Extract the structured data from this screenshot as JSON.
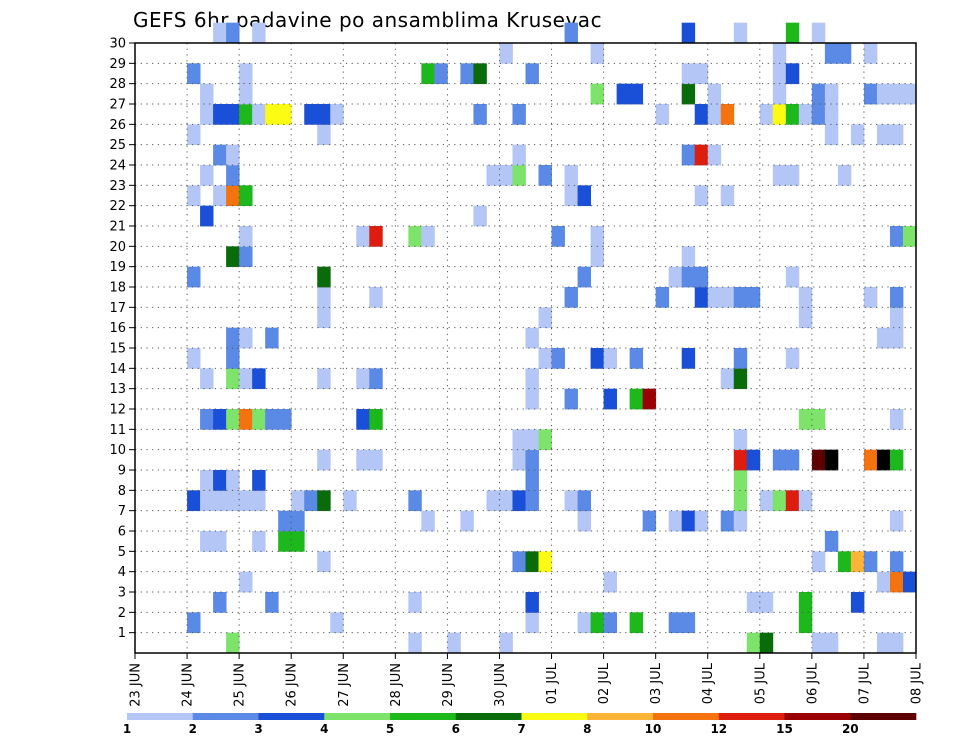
{
  "chart_data": {
    "type": "heatmap",
    "title": "GEFS 6hr padavine po ansamblima Krusevac",
    "xlabel": "",
    "ylabel": "",
    "x_tick_labels": [
      "23 JUN",
      "24 JUN",
      "25 JUN",
      "26 JUN",
      "27 JUN",
      "28 JUN",
      "29 JUN",
      "30 JUN",
      "01 JUL",
      "02 JUL",
      "03 JUL",
      "04 JUL",
      "05 JUL",
      "06 JUL",
      "07 JUL",
      "08 JUL"
    ],
    "x_range_6h_steps": [
      0,
      60
    ],
    "y_tick_labels": [
      "1",
      "2",
      "3",
      "4",
      "5",
      "6",
      "7",
      "8",
      "9",
      "10",
      "11",
      "12",
      "13",
      "14",
      "15",
      "16",
      "17",
      "18",
      "19",
      "20",
      "21",
      "22",
      "23",
      "24",
      "25",
      "26",
      "27",
      "28",
      "29",
      "30"
    ],
    "y_range": [
      0,
      30
    ],
    "grid": true,
    "colorbar": {
      "placement": "bottom",
      "levels": [
        "1",
        "2",
        "3",
        "4",
        "5",
        "6",
        "7",
        "8",
        "10",
        "12",
        "15",
        "20"
      ],
      "colors": [
        "#b4c6f6",
        "#5a8ae6",
        "#1a4fd8",
        "#7ee36a",
        "#1cb81c",
        "#0a6b0a",
        "#fbfb14",
        "#fbb437",
        "#f5730f",
        "#dd1d0d",
        "#9a0000",
        "#5e0000"
      ]
    },
    "cells_x_y_level": [
      [
        7,
        0,
        4
      ],
      [
        21,
        0,
        1
      ],
      [
        24,
        0,
        1
      ],
      [
        28,
        0,
        1
      ],
      [
        47,
        0,
        4
      ],
      [
        48,
        0,
        6
      ],
      [
        52,
        0,
        1
      ],
      [
        53,
        0,
        1
      ],
      [
        57,
        0,
        1
      ],
      [
        58,
        0,
        1
      ],
      [
        4,
        1,
        2
      ],
      [
        15,
        1,
        1
      ],
      [
        30,
        1,
        1
      ],
      [
        34,
        1,
        1
      ],
      [
        35,
        1,
        5
      ],
      [
        36,
        1,
        2
      ],
      [
        38,
        1,
        5
      ],
      [
        41,
        1,
        2
      ],
      [
        42,
        1,
        2
      ],
      [
        51,
        1,
        5
      ],
      [
        6,
        2,
        2
      ],
      [
        10,
        2,
        2
      ],
      [
        21,
        2,
        1
      ],
      [
        30,
        2,
        3
      ],
      [
        47,
        2,
        1
      ],
      [
        48,
        2,
        1
      ],
      [
        51,
        2,
        5
      ],
      [
        55,
        2,
        3
      ],
      [
        8,
        3,
        1
      ],
      [
        36,
        3,
        1
      ],
      [
        57,
        3,
        1
      ],
      [
        58,
        3,
        9
      ],
      [
        59,
        3,
        3
      ],
      [
        14,
        4,
        1
      ],
      [
        29,
        4,
        2
      ],
      [
        30,
        4,
        6
      ],
      [
        31,
        4,
        7
      ],
      [
        52,
        4,
        1
      ],
      [
        54,
        4,
        5
      ],
      [
        55,
        4,
        8
      ],
      [
        56,
        4,
        2
      ],
      [
        58,
        4,
        2
      ],
      [
        5,
        5,
        1
      ],
      [
        6,
        5,
        1
      ],
      [
        9,
        5,
        1
      ],
      [
        11,
        5,
        5
      ],
      [
        12,
        5,
        5
      ],
      [
        53,
        5,
        2
      ],
      [
        11,
        6,
        2
      ],
      [
        12,
        6,
        2
      ],
      [
        22,
        6,
        1
      ],
      [
        25,
        6,
        1
      ],
      [
        34,
        6,
        1
      ],
      [
        39,
        6,
        2
      ],
      [
        41,
        6,
        1
      ],
      [
        42,
        6,
        3
      ],
      [
        43,
        6,
        1
      ],
      [
        45,
        6,
        2
      ],
      [
        46,
        6,
        1
      ],
      [
        58,
        6,
        1
      ],
      [
        4,
        7,
        3
      ],
      [
        5,
        7,
        1
      ],
      [
        6,
        7,
        1
      ],
      [
        7,
        7,
        1
      ],
      [
        8,
        7,
        1
      ],
      [
        9,
        7,
        1
      ],
      [
        12,
        7,
        1
      ],
      [
        13,
        7,
        2
      ],
      [
        14,
        7,
        6
      ],
      [
        16,
        7,
        1
      ],
      [
        21,
        7,
        2
      ],
      [
        27,
        7,
        1
      ],
      [
        28,
        7,
        1
      ],
      [
        29,
        7,
        3
      ],
      [
        30,
        7,
        2
      ],
      [
        33,
        7,
        1
      ],
      [
        34,
        7,
        2
      ],
      [
        46,
        7,
        4
      ],
      [
        48,
        7,
        1
      ],
      [
        49,
        7,
        4
      ],
      [
        50,
        7,
        10
      ],
      [
        51,
        7,
        1
      ],
      [
        5,
        8,
        1
      ],
      [
        6,
        8,
        3
      ],
      [
        7,
        8,
        1
      ],
      [
        9,
        8,
        3
      ],
      [
        30,
        8,
        2
      ],
      [
        46,
        8,
        4
      ],
      [
        14,
        9,
        1
      ],
      [
        17,
        9,
        1
      ],
      [
        18,
        9,
        1
      ],
      [
        29,
        9,
        1
      ],
      [
        30,
        9,
        2
      ],
      [
        46,
        9,
        10
      ],
      [
        47,
        9,
        3
      ],
      [
        49,
        9,
        2
      ],
      [
        50,
        9,
        2
      ],
      [
        52,
        9,
        12
      ],
      [
        53,
        9,
        13
      ],
      [
        56,
        9,
        9
      ],
      [
        57,
        9,
        13
      ],
      [
        58,
        9,
        5
      ],
      [
        29,
        10,
        1
      ],
      [
        30,
        10,
        1
      ],
      [
        31,
        10,
        4
      ],
      [
        46,
        10,
        1
      ],
      [
        5,
        11,
        2
      ],
      [
        6,
        11,
        3
      ],
      [
        7,
        11,
        4
      ],
      [
        8,
        11,
        9
      ],
      [
        9,
        11,
        4
      ],
      [
        10,
        11,
        2
      ],
      [
        11,
        11,
        2
      ],
      [
        17,
        11,
        3
      ],
      [
        18,
        11,
        5
      ],
      [
        51,
        11,
        4
      ],
      [
        52,
        11,
        4
      ],
      [
        58,
        11,
        1
      ],
      [
        30,
        12,
        1
      ],
      [
        33,
        12,
        2
      ],
      [
        36,
        12,
        3
      ],
      [
        38,
        12,
        5
      ],
      [
        39,
        12,
        11
      ],
      [
        5,
        13,
        1
      ],
      [
        7,
        13,
        4
      ],
      [
        8,
        13,
        1
      ],
      [
        9,
        13,
        3
      ],
      [
        14,
        13,
        1
      ],
      [
        17,
        13,
        1
      ],
      [
        18,
        13,
        2
      ],
      [
        30,
        13,
        1
      ],
      [
        45,
        13,
        1
      ],
      [
        46,
        13,
        6
      ],
      [
        4,
        14,
        1
      ],
      [
        7,
        14,
        2
      ],
      [
        31,
        14,
        1
      ],
      [
        32,
        14,
        2
      ],
      [
        35,
        14,
        3
      ],
      [
        36,
        14,
        1
      ],
      [
        38,
        14,
        2
      ],
      [
        42,
        14,
        3
      ],
      [
        46,
        14,
        2
      ],
      [
        50,
        14,
        1
      ],
      [
        7,
        15,
        2
      ],
      [
        8,
        15,
        1
      ],
      [
        10,
        15,
        2
      ],
      [
        30,
        15,
        1
      ],
      [
        57,
        15,
        1
      ],
      [
        58,
        15,
        1
      ],
      [
        14,
        16,
        1
      ],
      [
        31,
        16,
        1
      ],
      [
        51,
        16,
        1
      ],
      [
        58,
        16,
        1
      ],
      [
        14,
        17,
        1
      ],
      [
        18,
        17,
        1
      ],
      [
        33,
        17,
        2
      ],
      [
        40,
        17,
        2
      ],
      [
        43,
        17,
        3
      ],
      [
        44,
        17,
        1
      ],
      [
        45,
        17,
        1
      ],
      [
        46,
        17,
        2
      ],
      [
        47,
        17,
        2
      ],
      [
        51,
        17,
        1
      ],
      [
        56,
        17,
        1
      ],
      [
        58,
        17,
        2
      ],
      [
        4,
        18,
        2
      ],
      [
        14,
        18,
        6
      ],
      [
        34,
        18,
        2
      ],
      [
        41,
        18,
        1
      ],
      [
        42,
        18,
        2
      ],
      [
        43,
        18,
        2
      ],
      [
        50,
        18,
        1
      ],
      [
        7,
        19,
        6
      ],
      [
        8,
        19,
        2
      ],
      [
        35,
        19,
        1
      ],
      [
        42,
        19,
        1
      ],
      [
        8,
        20,
        1
      ],
      [
        17,
        20,
        1
      ],
      [
        18,
        20,
        10
      ],
      [
        21,
        20,
        4
      ],
      [
        22,
        20,
        1
      ],
      [
        32,
        20,
        2
      ],
      [
        35,
        20,
        1
      ],
      [
        58,
        20,
        2
      ],
      [
        59,
        20,
        4
      ],
      [
        5,
        21,
        3
      ],
      [
        26,
        21,
        1
      ],
      [
        4,
        22,
        1
      ],
      [
        6,
        22,
        1
      ],
      [
        7,
        22,
        9
      ],
      [
        8,
        22,
        5
      ],
      [
        33,
        22,
        1
      ],
      [
        34,
        22,
        3
      ],
      [
        43,
        22,
        1
      ],
      [
        45,
        22,
        1
      ],
      [
        5,
        23,
        1
      ],
      [
        7,
        23,
        2
      ],
      [
        27,
        23,
        1
      ],
      [
        28,
        23,
        1
      ],
      [
        29,
        23,
        4
      ],
      [
        31,
        23,
        2
      ],
      [
        33,
        23,
        1
      ],
      [
        49,
        23,
        1
      ],
      [
        50,
        23,
        1
      ],
      [
        54,
        23,
        1
      ],
      [
        6,
        24,
        2
      ],
      [
        7,
        24,
        1
      ],
      [
        29,
        24,
        1
      ],
      [
        42,
        24,
        2
      ],
      [
        43,
        24,
        10
      ],
      [
        44,
        24,
        1
      ],
      [
        4,
        25,
        1
      ],
      [
        14,
        25,
        1
      ],
      [
        53,
        25,
        1
      ],
      [
        55,
        25,
        1
      ],
      [
        57,
        25,
        1
      ],
      [
        58,
        25,
        1
      ],
      [
        5,
        26,
        1
      ],
      [
        6,
        26,
        3
      ],
      [
        7,
        26,
        3
      ],
      [
        8,
        26,
        5
      ],
      [
        9,
        26,
        1
      ],
      [
        10,
        26,
        7
      ],
      [
        11,
        26,
        7
      ],
      [
        13,
        26,
        3
      ],
      [
        14,
        26,
        3
      ],
      [
        15,
        26,
        1
      ],
      [
        26,
        26,
        2
      ],
      [
        29,
        26,
        2
      ],
      [
        40,
        26,
        1
      ],
      [
        43,
        26,
        3
      ],
      [
        44,
        26,
        1
      ],
      [
        45,
        26,
        9
      ],
      [
        48,
        26,
        1
      ],
      [
        49,
        26,
        7
      ],
      [
        50,
        26,
        5
      ],
      [
        51,
        26,
        1
      ],
      [
        52,
        26,
        2
      ],
      [
        53,
        26,
        1
      ],
      [
        5,
        27,
        1
      ],
      [
        8,
        27,
        1
      ],
      [
        35,
        27,
        4
      ],
      [
        37,
        27,
        3
      ],
      [
        38,
        27,
        3
      ],
      [
        42,
        27,
        6
      ],
      [
        44,
        27,
        1
      ],
      [
        49,
        27,
        1
      ],
      [
        52,
        27,
        2
      ],
      [
        53,
        27,
        1
      ],
      [
        56,
        27,
        2
      ],
      [
        57,
        27,
        1
      ],
      [
        58,
        27,
        1
      ],
      [
        59,
        27,
        1
      ],
      [
        4,
        28,
        2
      ],
      [
        8,
        28,
        1
      ],
      [
        22,
        28,
        5
      ],
      [
        23,
        28,
        2
      ],
      [
        25,
        28,
        2
      ],
      [
        26,
        28,
        6
      ],
      [
        30,
        28,
        2
      ],
      [
        42,
        28,
        1
      ],
      [
        43,
        28,
        1
      ],
      [
        49,
        28,
        1
      ],
      [
        50,
        28,
        3
      ],
      [
        28,
        29,
        1
      ],
      [
        35,
        29,
        1
      ],
      [
        49,
        29,
        1
      ],
      [
        53,
        29,
        2
      ],
      [
        54,
        29,
        2
      ],
      [
        56,
        29,
        1
      ],
      [
        6,
        30,
        1
      ],
      [
        7,
        30,
        2
      ],
      [
        9,
        30,
        1
      ],
      [
        33,
        30,
        2
      ],
      [
        42,
        30,
        3
      ],
      [
        46,
        30,
        1
      ],
      [
        50,
        30,
        5
      ],
      [
        52,
        30,
        1
      ]
    ]
  }
}
